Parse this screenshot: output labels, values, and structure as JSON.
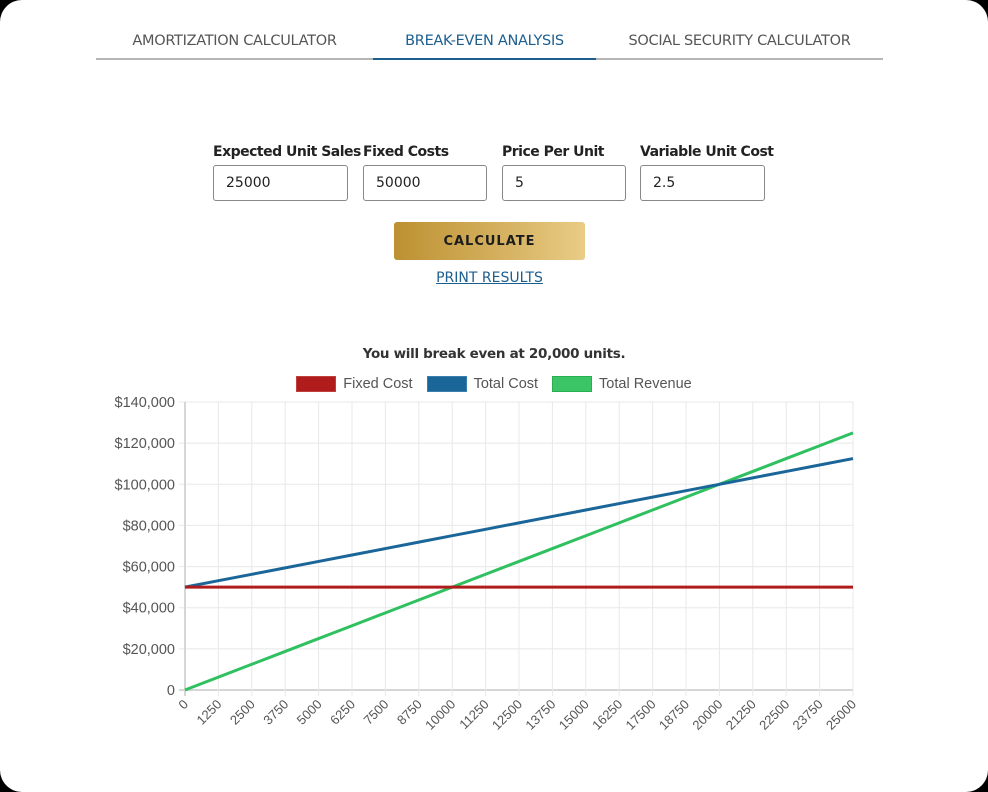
{
  "tabs": [
    {
      "label": "AMORTIZATION CALCULATOR",
      "active": false
    },
    {
      "label": "BREAK-EVEN ANALYSIS",
      "active": true
    },
    {
      "label": "SOCIAL SECURITY CALCULATOR",
      "active": false
    }
  ],
  "form": {
    "fields": [
      {
        "label": "Expected Unit Sales",
        "value": "25000"
      },
      {
        "label": "Fixed Costs",
        "value": "50000"
      },
      {
        "label": "Price Per Unit",
        "value": "5"
      },
      {
        "label": "Variable Unit Cost",
        "value": "2.5"
      }
    ],
    "calculate_label": "CALCULATE",
    "print_label": "PRINT RESULTS"
  },
  "result": {
    "message": "You will break even at 20,000 units."
  },
  "colors": {
    "fixed_cost": "#b01c1c",
    "total_cost": "#1b6699",
    "total_revenue": "#2fc060",
    "accent": "#1c5f8f"
  },
  "chart_data": {
    "type": "line",
    "title": "You will break even at 20,000 units.",
    "xlabel": "",
    "ylabel": "",
    "x": [
      0,
      1250,
      2500,
      3750,
      5000,
      6250,
      7500,
      8750,
      10000,
      11250,
      12500,
      13750,
      15000,
      16250,
      17500,
      18750,
      20000,
      21250,
      22500,
      23750,
      25000
    ],
    "x_tick_labels": [
      "0",
      "1250",
      "2500",
      "3750",
      "5000",
      "6250",
      "7500",
      "8750",
      "10000",
      "11250",
      "12500",
      "13750",
      "15000",
      "16250",
      "17500",
      "18750",
      "20000",
      "21250",
      "22500",
      "23750",
      "25000"
    ],
    "y_tick_labels": [
      "0",
      "$20,000",
      "$40,000",
      "$60,000",
      "$80,000",
      "$100,000",
      "$120,000",
      "$140,000"
    ],
    "ylim": [
      0,
      140000
    ],
    "grid": true,
    "legend_position": "top",
    "series": [
      {
        "name": "Fixed Cost",
        "color": "#b01c1c",
        "values": [
          50000,
          50000,
          50000,
          50000,
          50000,
          50000,
          50000,
          50000,
          50000,
          50000,
          50000,
          50000,
          50000,
          50000,
          50000,
          50000,
          50000,
          50000,
          50000,
          50000,
          50000
        ]
      },
      {
        "name": "Total Cost",
        "color": "#1b6699",
        "values": [
          50000,
          53125,
          56250,
          59375,
          62500,
          65625,
          68750,
          71875,
          75000,
          78125,
          81250,
          84375,
          87500,
          90625,
          93750,
          96875,
          100000,
          103125,
          106250,
          109375,
          112500
        ]
      },
      {
        "name": "Total Revenue",
        "color": "#2fc060",
        "values": [
          0,
          6250,
          12500,
          18750,
          25000,
          31250,
          37500,
          43750,
          50000,
          56250,
          62500,
          68750,
          75000,
          81250,
          87500,
          93750,
          100000,
          106250,
          112500,
          118750,
          125000
        ]
      }
    ]
  }
}
